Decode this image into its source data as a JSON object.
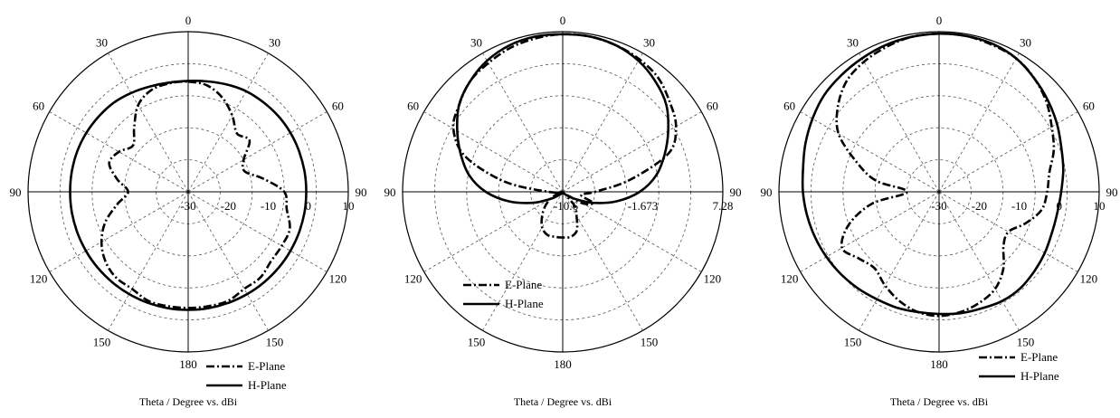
{
  "chart_data": [
    {
      "type": "polar-line",
      "angle_ticks": {
        "top": "0",
        "upper_left": "30",
        "upper_right": "30",
        "mid_left": "60",
        "mid_right": "60",
        "left": "90",
        "right": "90",
        "lower_left": "120",
        "lower_right": "120",
        "bottom_left": "150",
        "bottom_right": "150",
        "bottom": "180"
      },
      "radial_range": [
        -30,
        10
      ],
      "radial_ticks": [
        "-30",
        "-20",
        "-10",
        "0",
        "10"
      ],
      "xlabel": "Theta / Degree vs. dBi",
      "legend_position": "bottom-right",
      "series": [
        {
          "name": "E-Plane",
          "style": "dash-dot",
          "theta_deg": [
            0,
            10,
            20,
            30,
            40,
            50,
            60,
            70,
            80,
            90,
            100,
            110,
            120,
            130,
            140,
            150,
            160,
            170,
            180,
            190,
            200,
            210,
            220,
            230,
            240,
            250,
            260,
            270,
            280,
            290,
            300,
            310,
            320,
            330,
            340,
            350
          ],
          "gain_dbi": [
            -2.5,
            -3,
            -5,
            -8,
            -11,
            -10,
            -14,
            -15,
            -11,
            -6,
            -5,
            -3,
            -3,
            -3,
            -2,
            -2,
            -1,
            -1,
            -1,
            -1,
            -1,
            -2,
            -2,
            -3,
            -5,
            -8,
            -12,
            -15,
            -12,
            -9,
            -10,
            -12,
            -9,
            -5,
            -3,
            -2.5
          ]
        },
        {
          "name": "H-Plane",
          "style": "solid",
          "theta_deg": [
            0,
            10,
            20,
            30,
            40,
            50,
            60,
            70,
            80,
            90,
            100,
            110,
            120,
            130,
            140,
            150,
            160,
            170,
            180,
            190,
            200,
            210,
            220,
            230,
            240,
            250,
            260,
            270,
            280,
            290,
            300,
            310,
            320,
            330,
            340,
            350
          ],
          "gain_dbi": [
            -2.3,
            -2,
            -1.5,
            -1,
            -0.8,
            -0.6,
            -0.5,
            -0.5,
            -0.5,
            -0.5,
            -0.5,
            -0.5,
            -0.5,
            -0.5,
            -0.5,
            -0.5,
            -0.5,
            -0.5,
            -0.5,
            -0.5,
            -0.5,
            -0.5,
            -0.5,
            -0.5,
            -0.5,
            -0.5,
            -0.5,
            -0.5,
            -0.5,
            -0.5,
            -0.6,
            -0.8,
            -1,
            -1.5,
            -2,
            -2.3
          ]
        }
      ]
    },
    {
      "type": "polar-line",
      "angle_ticks": {
        "top": "0",
        "upper_left": "30",
        "upper_right": "30",
        "mid_left": "60",
        "mid_right": "60",
        "left": "90",
        "right": "90",
        "lower_left": "120",
        "lower_right": "120",
        "bottom_left": "150",
        "bottom_right": "150",
        "bottom": "180"
      },
      "radial_range": [
        -10.6,
        7.28
      ],
      "radial_ticks": [
        "-10.6",
        "-1.673",
        "7.28"
      ],
      "xlabel": "Theta / Degree vs. dBi",
      "legend_position": "bottom-left",
      "series": [
        {
          "name": "E-Plane",
          "style": "dash-dot",
          "theta_deg": [
            0,
            10,
            20,
            30,
            40,
            50,
            60,
            70,
            80,
            90,
            100,
            110,
            120,
            130,
            140,
            150,
            160,
            170,
            180,
            190,
            200,
            210,
            220,
            230,
            240,
            250,
            260,
            270,
            280,
            290,
            300,
            310,
            320,
            330,
            340,
            350
          ],
          "gain_dbi": [
            7.0,
            7.0,
            6.8,
            6.5,
            6.0,
            5.0,
            4.0,
            2.0,
            -3.0,
            -7.0,
            -8.5,
            -7.0,
            -8.0,
            -10.0,
            -8.5,
            -7.5,
            -6.0,
            -5.5,
            -5.5,
            -5.5,
            -5.5,
            -6.0,
            -7.0,
            -8.0,
            -9.0,
            -10.0,
            -10.5,
            -9.0,
            -4.0,
            1.0,
            3.5,
            4.5,
            5.5,
            6.0,
            6.5,
            6.8
          ]
        },
        {
          "name": "H-Plane",
          "style": "solid",
          "theta_deg": [
            0,
            10,
            20,
            30,
            40,
            50,
            60,
            70,
            80,
            90,
            100,
            110,
            120,
            130,
            140,
            150,
            160,
            170,
            180,
            190,
            200,
            210,
            220,
            230,
            240,
            250,
            260,
            270,
            280,
            290,
            300,
            310,
            320,
            330,
            340,
            350
          ],
          "gain_dbi": [
            7.0,
            7.0,
            6.8,
            6.3,
            5.5,
            4.5,
            3.0,
            1.5,
            0.0,
            -2.0,
            -4.5,
            -7.0,
            -9.0,
            -10.0,
            -10.3,
            -10.4,
            -10.5,
            -10.5,
            -10.5,
            -10.5,
            -10.5,
            -10.4,
            -10.3,
            -10.0,
            -9.0,
            -7.0,
            -4.5,
            -2.0,
            0.0,
            1.5,
            3.0,
            4.5,
            5.5,
            6.3,
            6.8,
            7.0
          ]
        }
      ]
    },
    {
      "type": "polar-line",
      "angle_ticks": {
        "top": "0",
        "upper_left": "30",
        "upper_right": "30",
        "mid_left": "60",
        "mid_right": "60",
        "left": "90",
        "right": "90",
        "lower_left": "120",
        "lower_right": "120",
        "bottom_left": "150",
        "bottom_right": "150",
        "bottom": "180"
      },
      "radial_range": [
        -30,
        10
      ],
      "radial_ticks": [
        "-30",
        "-20",
        "-10",
        "0",
        "10"
      ],
      "xlabel": "Theta / Degree vs. dBi",
      "legend_position": "bottom-right",
      "series": [
        {
          "name": "E-Plane",
          "style": "dash-dot",
          "theta_deg": [
            0,
            10,
            20,
            30,
            40,
            50,
            60,
            70,
            80,
            90,
            100,
            110,
            120,
            130,
            140,
            150,
            160,
            170,
            180,
            190,
            200,
            210,
            220,
            230,
            240,
            250,
            260,
            270,
            280,
            290,
            300,
            310,
            320,
            330,
            340,
            350
          ],
          "gain_dbi": [
            9.5,
            9.5,
            9.0,
            8.5,
            7.0,
            5.0,
            2.5,
            0.5,
            -2.0,
            -3.0,
            -4.0,
            -7.0,
            -10.0,
            -9.0,
            -5.0,
            -2.0,
            -0.5,
            0.5,
            1.0,
            0.5,
            -1.0,
            -3.0,
            -5.0,
            -4.0,
            -2.0,
            -6.0,
            -13.0,
            -22.0,
            -14.0,
            -8.0,
            -1.0,
            3.0,
            6.0,
            7.5,
            8.5,
            9.3
          ]
        },
        {
          "name": "H-Plane",
          "style": "solid",
          "theta_deg": [
            0,
            10,
            20,
            30,
            40,
            50,
            60,
            70,
            80,
            90,
            100,
            110,
            120,
            130,
            140,
            150,
            160,
            170,
            180,
            190,
            200,
            210,
            220,
            230,
            240,
            250,
            260,
            270,
            280,
            290,
            300,
            310,
            320,
            330,
            340,
            350
          ],
          "gain_dbi": [
            9.5,
            9.5,
            9.3,
            8.5,
            7.0,
            5.5,
            4.0,
            2.5,
            1.5,
            0.5,
            0.0,
            0.0,
            0.5,
            1.0,
            1.5,
            1.5,
            1.0,
            0.8,
            0.5,
            0.5,
            0.8,
            1.0,
            1.5,
            2.0,
            2.5,
            3.0,
            3.5,
            4.0,
            4.5,
            5.5,
            6.5,
            7.5,
            8.0,
            8.5,
            9.0,
            9.3
          ]
        }
      ]
    }
  ]
}
